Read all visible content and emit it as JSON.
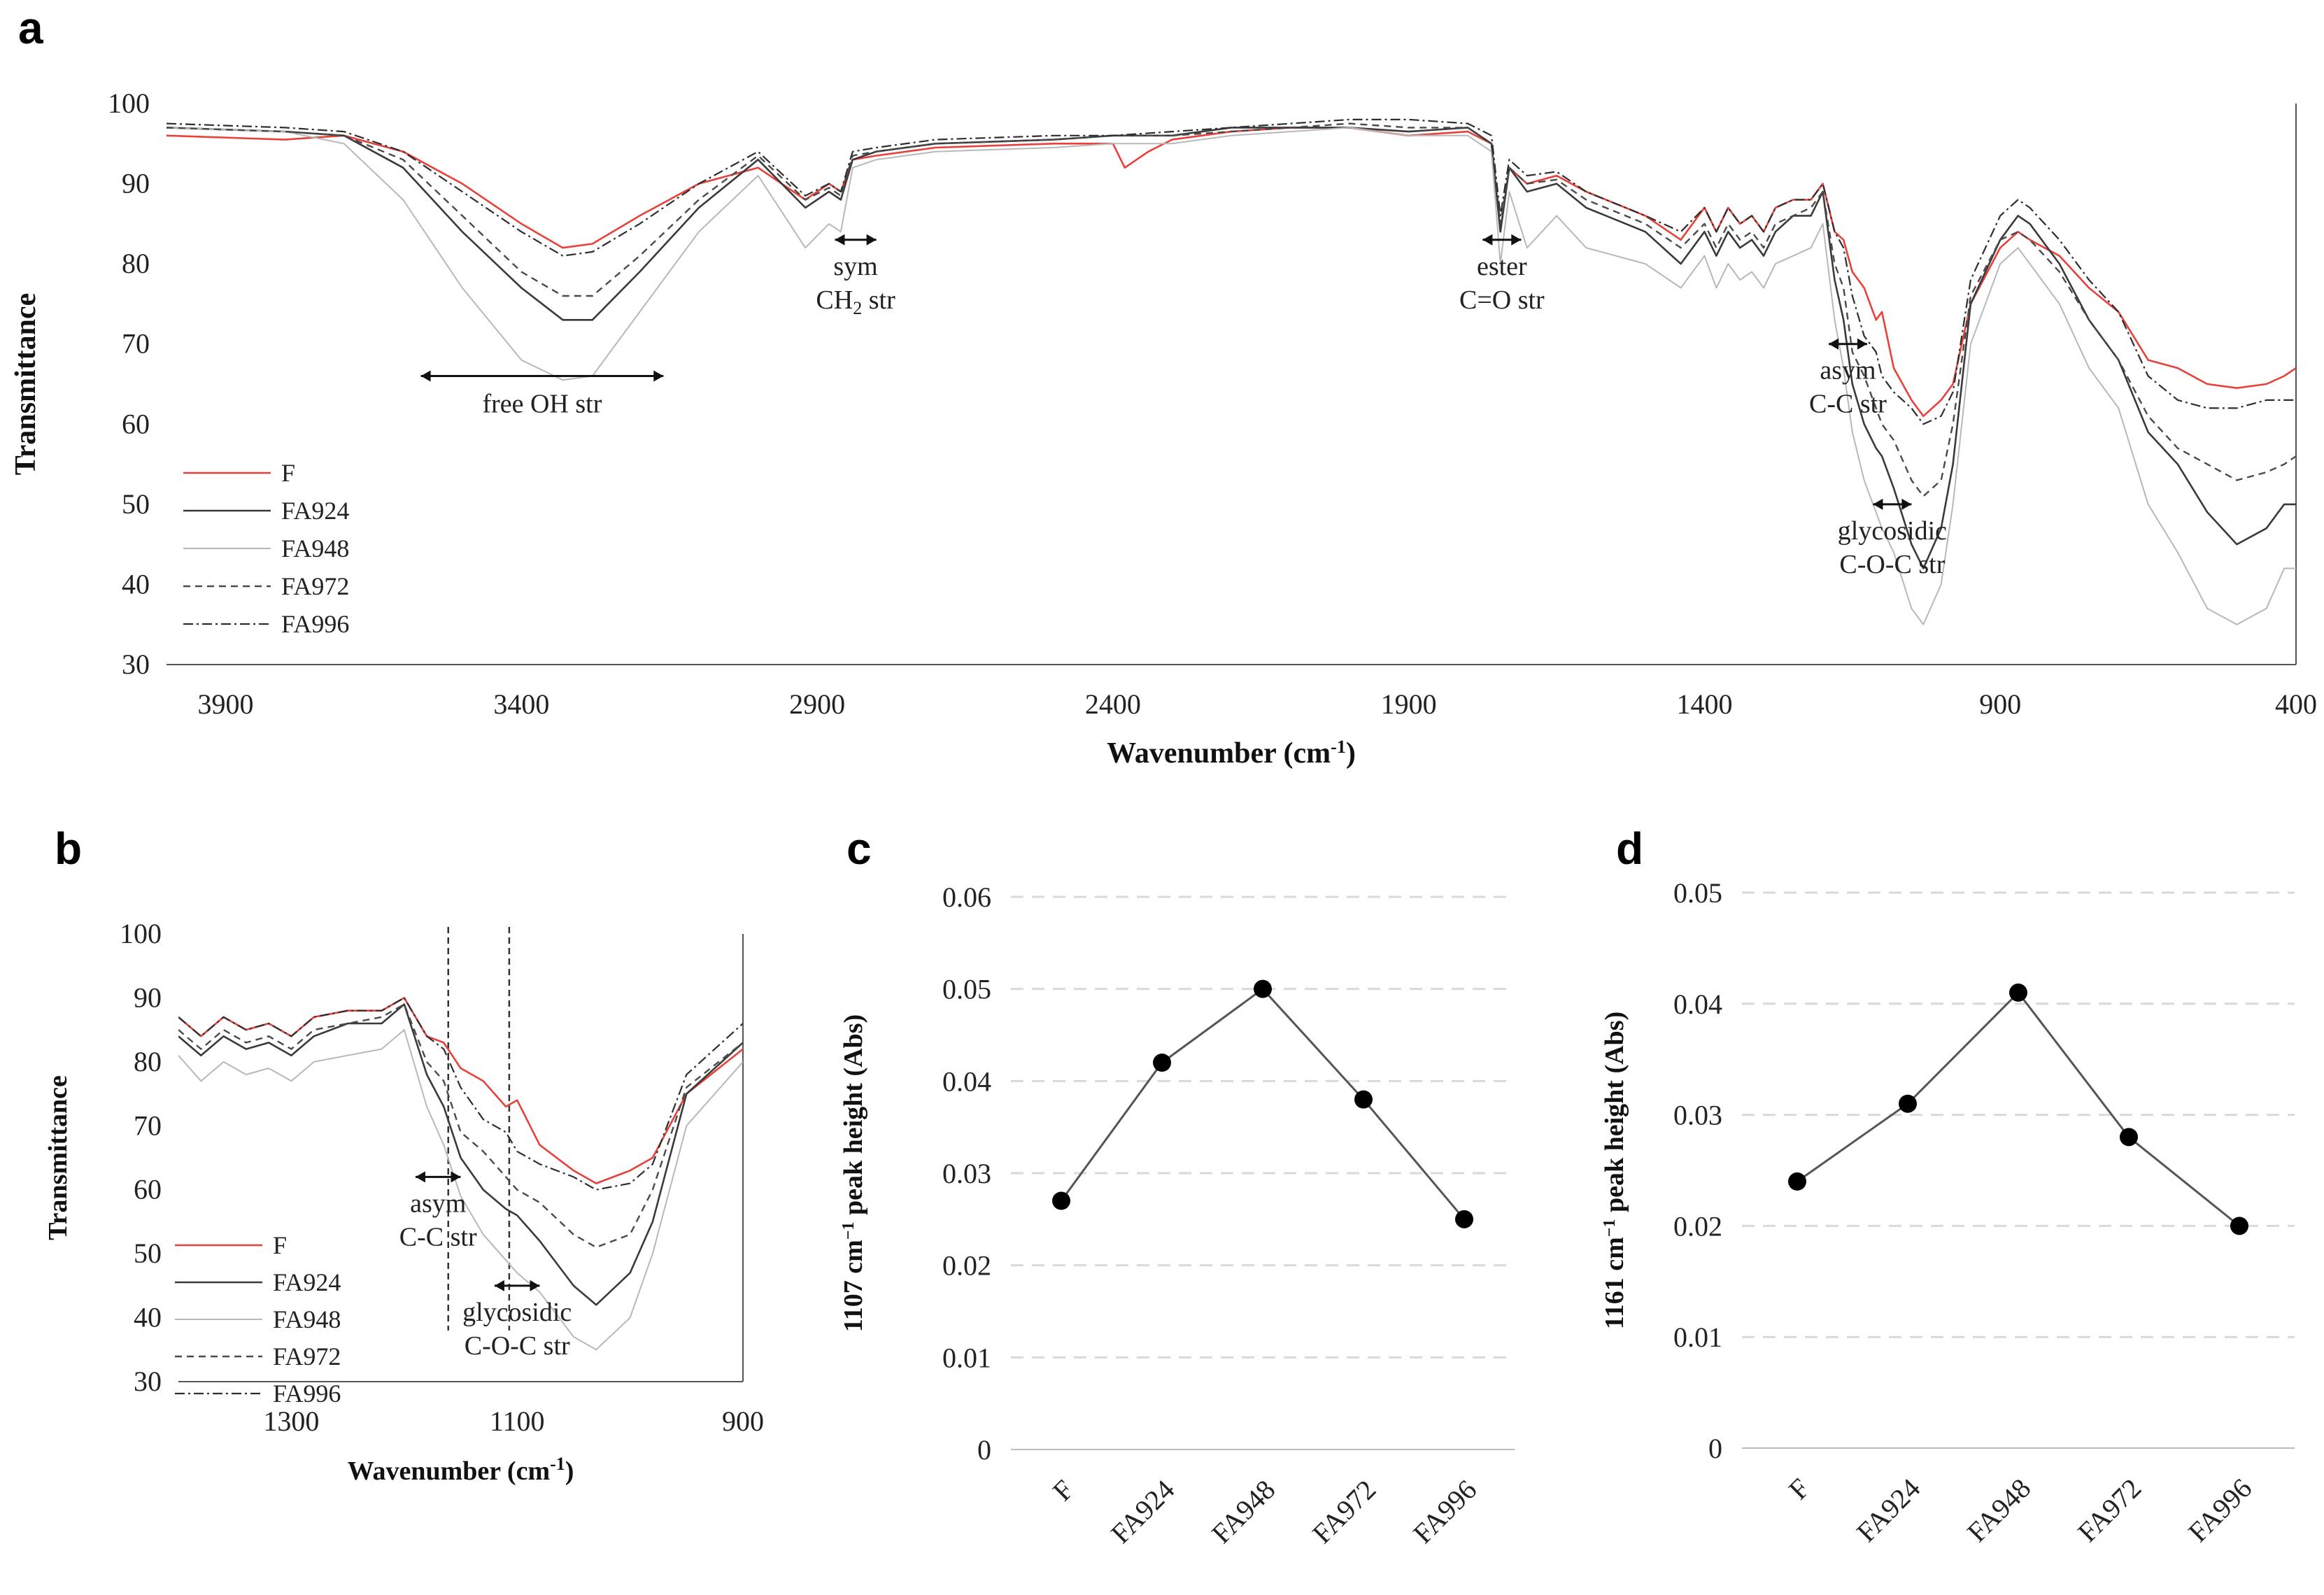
{
  "figure": {
    "panel_labels": [
      "a",
      "b",
      "c",
      "d"
    ]
  },
  "chart_data": [
    {
      "panel": "a",
      "type": "line",
      "xlabel": "Wavenumber (cm-1)",
      "xlabel_main": "Wavenumber (cm",
      "xlabel_sup": "-1",
      "xlabel_tail": ")",
      "ylabel": "Transmittance",
      "xlim": [
        4000,
        400
      ],
      "ylim": [
        30,
        100
      ],
      "xticks": [
        3900,
        3400,
        2900,
        2400,
        1900,
        1400,
        900,
        400
      ],
      "yticks": [
        30,
        40,
        50,
        60,
        70,
        80,
        90,
        100
      ],
      "legend_position": "bottom-left",
      "annotations": [
        {
          "lines": [
            "free OH str"
          ],
          "x_from": 3570,
          "x_to": 3160,
          "y": 66
        },
        {
          "lines": [
            "sym",
            "CH2 str"
          ],
          "x_from": 2870,
          "x_to": 2800,
          "y": 83
        },
        {
          "lines": [
            "ester",
            "C=O str"
          ],
          "x_from": 1775,
          "x_to": 1710,
          "y": 83
        },
        {
          "lines": [
            "asym",
            "C-C str"
          ],
          "x_from": 1190,
          "x_to": 1125,
          "y": 70
        },
        {
          "lines": [
            "glycosidic",
            "C-O-C str"
          ],
          "x_from": 1115,
          "x_to": 1050,
          "y": 50
        }
      ],
      "series": [
        {
          "name": "F",
          "color": "#e8403a",
          "dash": "",
          "width": 2.6,
          "x": [
            4000,
            3800,
            3700,
            3600,
            3500,
            3400,
            3330,
            3280,
            3200,
            3100,
            3000,
            2920,
            2880,
            2860,
            2840,
            2800,
            2700,
            2500,
            2400,
            2380,
            2340,
            2300,
            2200,
            2100,
            2000,
            1900,
            1800,
            1760,
            1745,
            1730,
            1700,
            1650,
            1600,
            1500,
            1440,
            1400,
            1380,
            1360,
            1340,
            1320,
            1300,
            1280,
            1250,
            1220,
            1200,
            1180,
            1165,
            1150,
            1130,
            1110,
            1100,
            1080,
            1050,
            1030,
            1000,
            980,
            950,
            900,
            870,
            850,
            800,
            750,
            700,
            650,
            600,
            550,
            500,
            450,
            420,
            400
          ],
          "y": [
            96,
            95.5,
            96,
            94,
            90,
            85,
            82,
            82.5,
            86,
            90,
            92,
            88,
            90,
            89,
            93,
            93.5,
            94.5,
            95,
            95,
            92,
            94,
            95.5,
            96.5,
            97,
            97,
            96,
            96.5,
            95,
            84,
            92,
            90,
            91,
            89,
            86,
            83,
            87,
            84,
            87,
            85,
            86,
            84,
            87,
            88,
            88,
            90,
            84,
            83,
            79,
            77,
            73,
            74,
            67,
            63,
            61,
            63,
            65,
            75,
            82,
            84,
            83,
            81,
            77,
            74,
            68,
            67,
            65,
            64.5,
            65,
            66,
            67
          ]
        },
        {
          "name": "FA924",
          "color": "#3a3a3a",
          "dash": "",
          "width": 2.6,
          "x": [
            4000,
            3800,
            3700,
            3600,
            3500,
            3400,
            3330,
            3280,
            3200,
            3100,
            3000,
            2920,
            2880,
            2860,
            2840,
            2800,
            2700,
            2500,
            2400,
            2300,
            2200,
            2100,
            2000,
            1900,
            1800,
            1760,
            1745,
            1730,
            1700,
            1650,
            1600,
            1500,
            1440,
            1400,
            1380,
            1360,
            1340,
            1320,
            1300,
            1280,
            1250,
            1220,
            1200,
            1180,
            1165,
            1150,
            1130,
            1110,
            1100,
            1080,
            1050,
            1030,
            1000,
            980,
            950,
            900,
            870,
            850,
            800,
            750,
            700,
            650,
            600,
            550,
            500,
            450,
            420,
            400
          ],
          "y": [
            97,
            96.5,
            96,
            92,
            84,
            77,
            73,
            73,
            79,
            87,
            93,
            87,
            89,
            88,
            93,
            94,
            95,
            95.5,
            96,
            96,
            97,
            97,
            97,
            96.5,
            97,
            95,
            84,
            92,
            89,
            90,
            87,
            84,
            80,
            84,
            81,
            84,
            82,
            83,
            81,
            84,
            86,
            86,
            89,
            78,
            73,
            65,
            60,
            57,
            56,
            52,
            45,
            42,
            47,
            55,
            75,
            83,
            86,
            85,
            80,
            73,
            68,
            59,
            55,
            49,
            45,
            47,
            50,
            50
          ]
        },
        {
          "name": "FA948",
          "color": "#b8b8b8",
          "dash": "",
          "width": 2.0,
          "x": [
            4000,
            3800,
            3700,
            3600,
            3500,
            3400,
            3330,
            3280,
            3200,
            3100,
            3000,
            2920,
            2880,
            2860,
            2840,
            2800,
            2700,
            2500,
            2400,
            2300,
            2200,
            2100,
            2000,
            1900,
            1800,
            1760,
            1745,
            1730,
            1700,
            1650,
            1600,
            1500,
            1440,
            1400,
            1380,
            1360,
            1340,
            1320,
            1300,
            1280,
            1250,
            1220,
            1200,
            1180,
            1165,
            1150,
            1130,
            1110,
            1100,
            1080,
            1050,
            1030,
            1000,
            980,
            950,
            900,
            870,
            850,
            800,
            750,
            700,
            650,
            600,
            550,
            500,
            450,
            420,
            400
          ],
          "y": [
            97,
            96.5,
            95,
            88,
            77,
            68,
            65.5,
            66,
            74,
            84,
            91,
            82,
            85,
            84,
            92,
            93,
            94,
            94.5,
            95,
            95,
            96,
            96.5,
            97,
            96,
            96,
            94,
            80,
            89,
            82,
            86,
            82,
            80,
            77,
            81,
            77,
            80,
            78,
            79,
            77,
            80,
            81,
            82,
            85,
            73,
            67,
            59,
            53,
            49,
            47,
            44,
            37,
            35,
            40,
            50,
            70,
            80,
            82,
            80,
            75,
            67,
            62,
            50,
            44,
            37,
            35,
            37,
            42,
            42
          ]
        },
        {
          "name": "FA972",
          "color": "#4a4a4a",
          "dash": "10 7",
          "width": 2.4,
          "x": [
            4000,
            3800,
            3700,
            3600,
            3500,
            3400,
            3330,
            3280,
            3200,
            3100,
            3000,
            2920,
            2880,
            2860,
            2840,
            2800,
            2700,
            2500,
            2400,
            2300,
            2200,
            2100,
            2000,
            1900,
            1800,
            1760,
            1745,
            1730,
            1700,
            1650,
            1600,
            1500,
            1440,
            1400,
            1380,
            1360,
            1340,
            1320,
            1300,
            1280,
            1250,
            1220,
            1200,
            1180,
            1165,
            1150,
            1130,
            1110,
            1100,
            1080,
            1050,
            1030,
            1000,
            980,
            950,
            900,
            870,
            850,
            800,
            750,
            700,
            650,
            600,
            550,
            500,
            450,
            420,
            400
          ],
          "y": [
            97,
            96.5,
            96,
            93,
            86,
            79,
            76,
            76,
            81,
            88,
            93.5,
            88,
            89.5,
            88.5,
            93.5,
            94,
            95,
            95.5,
            96,
            96,
            96.5,
            97,
            97.5,
            97,
            97,
            95,
            85,
            92,
            90,
            90.5,
            88,
            85,
            82,
            85,
            82,
            85,
            83,
            84,
            82,
            85,
            86,
            87,
            89,
            80,
            77,
            69,
            66,
            62,
            60,
            58,
            53,
            51,
            53,
            60,
            76,
            83,
            84,
            83,
            79,
            73,
            68,
            61,
            57,
            55,
            53,
            54,
            55,
            56
          ]
        },
        {
          "name": "FA996",
          "color": "#2e2e2e",
          "dash": "14 5 3 5",
          "width": 2.2,
          "x": [
            4000,
            3800,
            3700,
            3600,
            3500,
            3400,
            3330,
            3280,
            3200,
            3100,
            3000,
            2920,
            2880,
            2860,
            2840,
            2800,
            2700,
            2500,
            2400,
            2300,
            2200,
            2100,
            2000,
            1900,
            1800,
            1760,
            1745,
            1730,
            1700,
            1650,
            1600,
            1500,
            1440,
            1400,
            1380,
            1360,
            1340,
            1320,
            1300,
            1280,
            1250,
            1220,
            1200,
            1180,
            1165,
            1150,
            1130,
            1110,
            1100,
            1080,
            1050,
            1030,
            1000,
            980,
            950,
            900,
            870,
            850,
            800,
            750,
            700,
            650,
            600,
            550,
            500,
            450,
            420,
            400
          ],
          "y": [
            97.5,
            97,
            96.5,
            94,
            89,
            84,
            81,
            81.5,
            85,
            90,
            94,
            88.5,
            90,
            89,
            94,
            94.5,
            95.5,
            96,
            96,
            96.5,
            97,
            97.5,
            98,
            98,
            97.5,
            96,
            86,
            93,
            91,
            91.5,
            89,
            86,
            84,
            87,
            84,
            87,
            85,
            86,
            84,
            87,
            88,
            88,
            90,
            84,
            82,
            76,
            71,
            69,
            66,
            64,
            62,
            60,
            61,
            64,
            78,
            86,
            88,
            87,
            83,
            78,
            74,
            66,
            63,
            62,
            62,
            63,
            63,
            63
          ]
        }
      ]
    },
    {
      "panel": "b",
      "type": "line",
      "xlabel": "Wavenumber (cm-1)",
      "xlabel_main": "Wavenumber (cm",
      "xlabel_sup": "-1",
      "xlabel_tail": ")",
      "ylabel": "Transmittance",
      "xlim": [
        1400,
        900
      ],
      "ylim": [
        30,
        100
      ],
      "xticks": [
        1300,
        1100,
        900
      ],
      "yticks": [
        30,
        40,
        50,
        60,
        70,
        80,
        90,
        100
      ],
      "legend_position": "bottom-left",
      "vlines": [
        1161,
        1107
      ],
      "annotations": [
        {
          "lines": [
            "asym",
            "C-C str"
          ],
          "x_from": 1190,
          "x_to": 1150,
          "y": 62
        },
        {
          "lines": [
            "glycosidic",
            "C-O-C str"
          ],
          "x_from": 1120,
          "x_to": 1080,
          "y": 45
        }
      ]
    },
    {
      "panel": "c",
      "type": "line",
      "categories": [
        "F",
        "FA924",
        "FA948",
        "FA972",
        "FA996"
      ],
      "values": [
        0.027,
        0.042,
        0.05,
        0.038,
        0.025
      ],
      "ylabel": "1107 cm−1 peak height (Abs)",
      "ylabel_pre": "1107 cm",
      "ylabel_sup": "−1",
      "ylabel_post": " peak height (Abs)",
      "ylim": [
        0,
        0.06
      ],
      "yticks": [
        "0",
        "0.01",
        "0.02",
        "0.03",
        "0.04",
        "0.05",
        "0.06"
      ],
      "grid": true
    },
    {
      "panel": "d",
      "type": "line",
      "categories": [
        "F",
        "FA924",
        "FA948",
        "FA972",
        "FA996"
      ],
      "values": [
        0.024,
        0.031,
        0.041,
        0.028,
        0.02
      ],
      "ylabel": "1161 cm−1 peak height (Abs)",
      "ylabel_pre": "1161 cm",
      "ylabel_sup": "−1",
      "ylabel_post": " peak height (Abs)",
      "ylim": [
        0,
        0.05
      ],
      "yticks": [
        "0",
        "0.01",
        "0.02",
        "0.03",
        "0.04",
        "0.05"
      ],
      "grid": true
    }
  ]
}
